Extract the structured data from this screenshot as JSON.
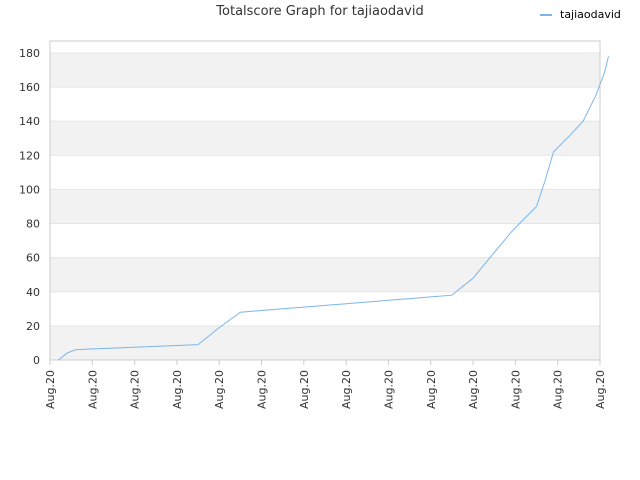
{
  "chart_data": {
    "type": "line",
    "title": "Totalscore Graph for tajiaodavid",
    "xlabel": "",
    "ylabel": "",
    "ylim": [
      0,
      180
    ],
    "yticks": [
      0,
      20,
      40,
      60,
      80,
      100,
      120,
      140,
      160,
      180
    ],
    "xticks": [
      "Aug.20",
      "Aug.20",
      "Aug.20",
      "Aug.20",
      "Aug.20",
      "Aug.20",
      "Aug.20",
      "Aug.20",
      "Aug.20",
      "Aug.20",
      "Aug.20",
      "Aug.20",
      "Aug.20",
      "Aug.20"
    ],
    "grid": true,
    "legend_position": "top-right",
    "colors": {
      "series": "#7cb5ec",
      "band": "#f2f2f2",
      "axis": "#cccccc"
    },
    "series": [
      {
        "name": "tajiaodavid",
        "x": [
          0.2,
          0.4,
          0.6,
          1.0,
          1.5,
          2.0,
          2.5,
          3.0,
          3.5,
          4.0,
          4.5,
          5.0,
          5.5,
          6.0,
          6.5,
          7.0,
          7.5,
          8.0,
          8.5,
          9.0,
          9.5,
          10.0,
          10.5,
          10.9,
          11.1,
          11.5,
          11.7,
          11.9,
          12.3,
          12.6,
          12.9,
          13.1,
          13.2
        ],
        "values": [
          0,
          4,
          6,
          6.5,
          7,
          7.5,
          8,
          8.5,
          9,
          19,
          28,
          29,
          30,
          31,
          32,
          33,
          34,
          35,
          36,
          37,
          38,
          48,
          63,
          75,
          80,
          90,
          105,
          122,
          132,
          140,
          155,
          168,
          178
        ]
      }
    ]
  }
}
